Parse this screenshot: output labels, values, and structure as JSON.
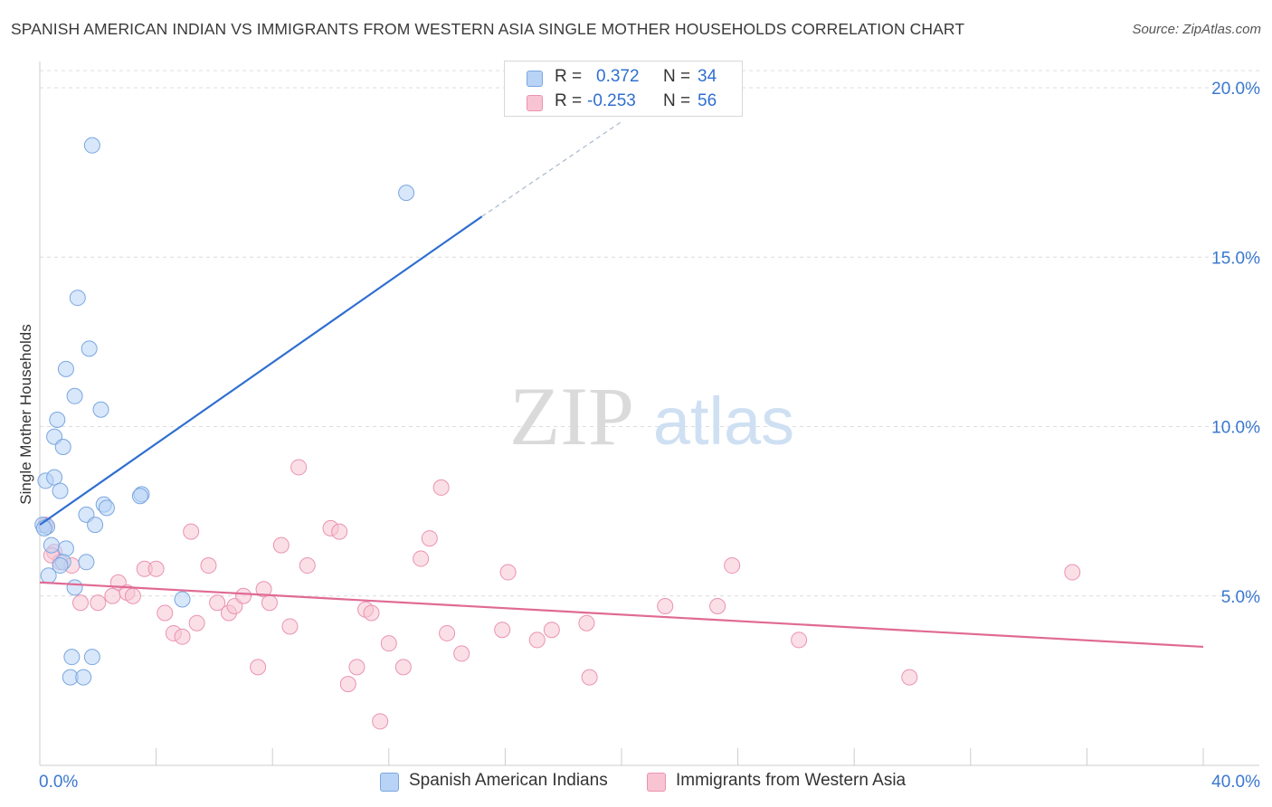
{
  "title": "SPANISH AMERICAN INDIAN VS IMMIGRANTS FROM WESTERN ASIA SINGLE MOTHER HOUSEHOLDS CORRELATION CHART",
  "source": "Source: ZipAtlas.com",
  "watermark": {
    "zip": "ZIP",
    "atlas": "atlas"
  },
  "legend_top": {
    "rows": [
      {
        "r_label": "R =",
        "r_value": "0.372",
        "n_label": "N =",
        "n_value": "34"
      },
      {
        "r_label": "R =",
        "r_value": "-0.253",
        "n_label": "N =",
        "n_value": "56"
      }
    ]
  },
  "legend_bottom": {
    "series1": "Spanish American Indians",
    "series2": "Immigrants from Western Asia"
  },
  "colors": {
    "blue_fill": "#b8d3f5",
    "blue_stroke": "#7aa7e0",
    "blue_line": "#2f6fd0",
    "pink_fill": "#f8c4d4",
    "pink_stroke": "#ea93b1",
    "pink_line": "#e06a94",
    "axis_text": "#3a78d0",
    "grid": "#dcdcdc"
  },
  "chart_data": {
    "type": "scatter",
    "title": "SPANISH AMERICAN INDIAN VS IMMIGRANTS FROM WESTERN ASIA SINGLE MOTHER HOUSEHOLDS CORRELATION CHART",
    "xlabel": "",
    "ylabel": "Single Mother Households",
    "xlim": [
      0,
      40
    ],
    "ylim": [
      0,
      20
    ],
    "x_tick_labels": [
      "0.0%",
      "40.0%"
    ],
    "y_ticks": [
      5,
      10,
      15,
      20
    ],
    "y_tick_labels": [
      "5.0%",
      "10.0%",
      "15.0%",
      "20.0%"
    ],
    "grid": "horizontal dashed",
    "legend_placement": "bottom-center",
    "series": [
      {
        "name": "Spanish American Indians",
        "r": 0.372,
        "n": 34,
        "trend": {
          "x0": 0.0,
          "y0": 7.1,
          "x1": 15.2,
          "y1": 16.2,
          "dash_to_x": 20.0,
          "dash_to_y": 19.0
        },
        "points": [
          [
            1.8,
            18.3
          ],
          [
            12.6,
            16.9
          ],
          [
            1.3,
            13.8
          ],
          [
            1.7,
            12.3
          ],
          [
            0.9,
            11.7
          ],
          [
            1.2,
            10.9
          ],
          [
            2.1,
            10.5
          ],
          [
            0.6,
            10.2
          ],
          [
            0.5,
            9.7
          ],
          [
            0.8,
            9.4
          ],
          [
            0.2,
            8.4
          ],
          [
            0.5,
            8.5
          ],
          [
            0.7,
            8.1
          ],
          [
            3.5,
            8.0
          ],
          [
            3.45,
            7.95
          ],
          [
            2.2,
            7.7
          ],
          [
            2.3,
            7.6
          ],
          [
            1.6,
            7.4
          ],
          [
            1.9,
            7.1
          ],
          [
            0.1,
            7.1
          ],
          [
            0.25,
            7.05
          ],
          [
            0.4,
            6.5
          ],
          [
            0.9,
            6.4
          ],
          [
            0.8,
            6.0
          ],
          [
            1.6,
            6.0
          ],
          [
            0.7,
            5.9
          ],
          [
            0.3,
            5.6
          ],
          [
            1.2,
            5.25
          ],
          [
            4.9,
            4.9
          ],
          [
            1.1,
            3.2
          ],
          [
            1.8,
            3.2
          ],
          [
            1.05,
            2.6
          ],
          [
            1.5,
            2.6
          ],
          [
            0.15,
            7.0
          ]
        ]
      },
      {
        "name": "Immigrants from Western Asia",
        "r": -0.253,
        "n": 56,
        "trend": {
          "x0": 0.0,
          "y0": 5.4,
          "x1": 40.0,
          "y1": 3.5
        },
        "points": [
          [
            0.2,
            7.1
          ],
          [
            0.5,
            6.3
          ],
          [
            0.7,
            6.0
          ],
          [
            1.1,
            5.9
          ],
          [
            1.4,
            4.8
          ],
          [
            2.0,
            4.8
          ],
          [
            2.7,
            5.4
          ],
          [
            2.5,
            5.0
          ],
          [
            3.0,
            5.1
          ],
          [
            3.2,
            5.0
          ],
          [
            3.6,
            5.8
          ],
          [
            4.0,
            5.8
          ],
          [
            4.3,
            4.5
          ],
          [
            4.6,
            3.9
          ],
          [
            4.9,
            3.8
          ],
          [
            5.2,
            6.9
          ],
          [
            5.4,
            4.2
          ],
          [
            5.8,
            5.9
          ],
          [
            6.1,
            4.8
          ],
          [
            6.5,
            4.5
          ],
          [
            6.7,
            4.7
          ],
          [
            7.0,
            5.0
          ],
          [
            7.5,
            2.9
          ],
          [
            7.7,
            5.2
          ],
          [
            7.9,
            4.8
          ],
          [
            8.3,
            6.5
          ],
          [
            8.6,
            4.1
          ],
          [
            8.9,
            8.8
          ],
          [
            9.2,
            5.9
          ],
          [
            10.0,
            7.0
          ],
          [
            10.3,
            6.9
          ],
          [
            10.6,
            2.4
          ],
          [
            10.9,
            2.9
          ],
          [
            11.2,
            4.6
          ],
          [
            11.4,
            4.5
          ],
          [
            11.7,
            1.3
          ],
          [
            12.0,
            3.6
          ],
          [
            12.5,
            2.9
          ],
          [
            13.1,
            6.1
          ],
          [
            13.4,
            6.7
          ],
          [
            13.8,
            8.2
          ],
          [
            14.0,
            3.9
          ],
          [
            14.5,
            3.3
          ],
          [
            15.9,
            4.0
          ],
          [
            16.1,
            5.7
          ],
          [
            17.1,
            3.7
          ],
          [
            17.6,
            4.0
          ],
          [
            18.8,
            4.2
          ],
          [
            18.9,
            2.6
          ],
          [
            21.5,
            4.7
          ],
          [
            23.3,
            4.7
          ],
          [
            23.8,
            5.9
          ],
          [
            26.1,
            3.7
          ],
          [
            29.9,
            2.6
          ],
          [
            35.5,
            5.7
          ],
          [
            0.4,
            6.2
          ]
        ]
      }
    ]
  }
}
